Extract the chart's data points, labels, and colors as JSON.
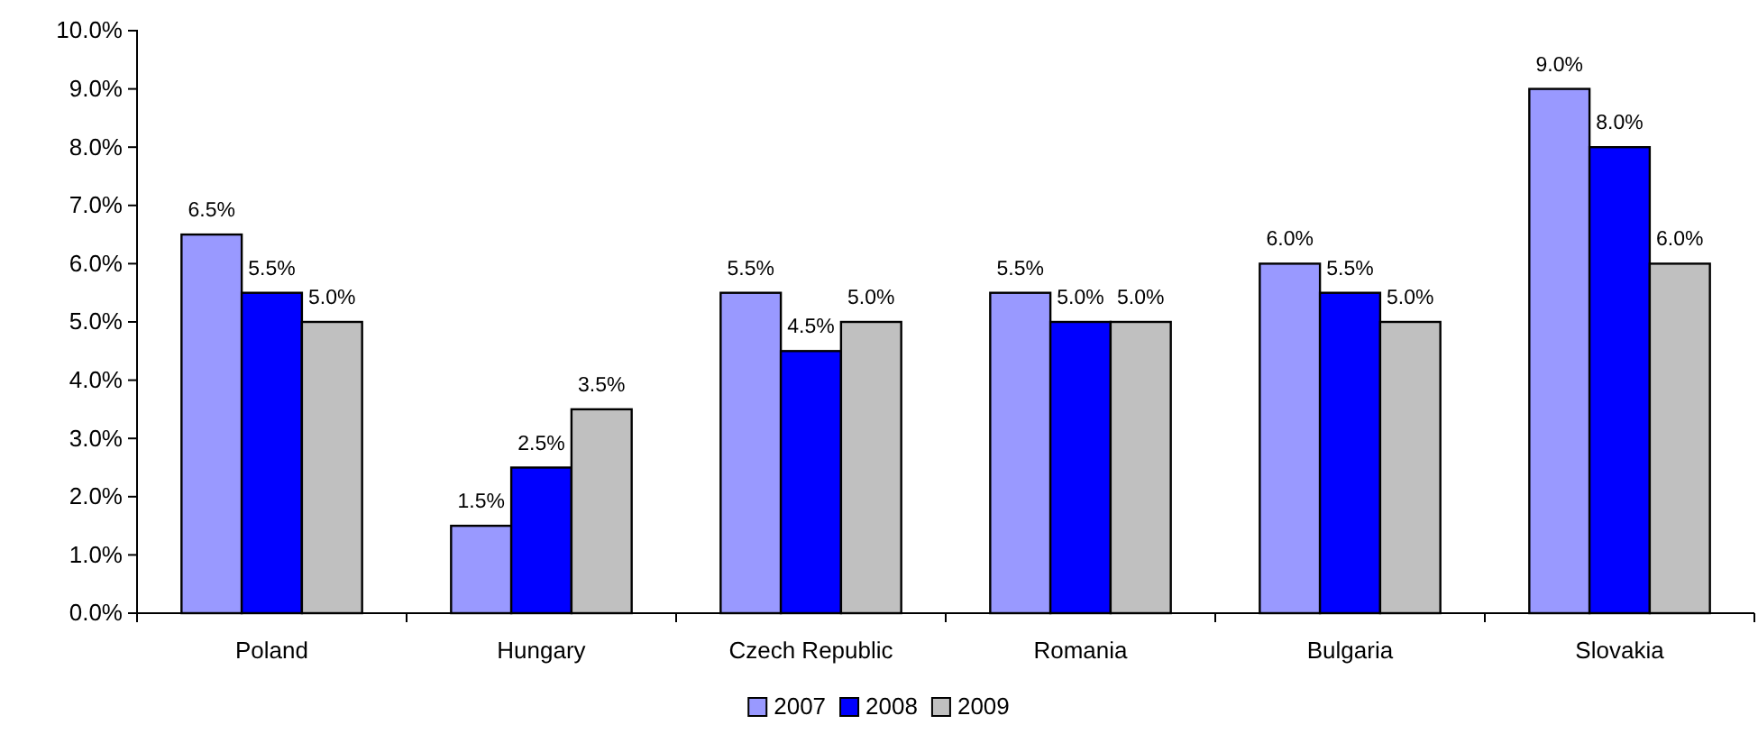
{
  "chart_data": {
    "type": "bar",
    "categories": [
      "Poland",
      "Hungary",
      "Czech Republic",
      "Romania",
      "Bulgaria",
      "Slovakia"
    ],
    "series": [
      {
        "name": "2007",
        "color": "#9999ff",
        "values": [
          6.5,
          1.5,
          5.5,
          5.5,
          6.0,
          9.0
        ],
        "value_labels": [
          "6.5%",
          "1.5%",
          "5.5%",
          "5.5%",
          "6.0%",
          "9.0%"
        ]
      },
      {
        "name": "2008",
        "color": "#0000ff",
        "values": [
          5.5,
          2.5,
          4.5,
          5.0,
          5.5,
          8.0
        ],
        "value_labels": [
          "5.5%",
          "2.5%",
          "4.5%",
          "5.0%",
          "5.5%",
          "8.0%"
        ]
      },
      {
        "name": "2009",
        "color": "#c0c0c0",
        "values": [
          5.0,
          3.5,
          5.0,
          5.0,
          5.0,
          6.0
        ],
        "value_labels": [
          "5.0%",
          "3.5%",
          "5.0%",
          "5.0%",
          "5.0%",
          "6.0%"
        ]
      }
    ],
    "ylim": [
      0,
      10
    ],
    "yticks": [
      {
        "value": 0,
        "label": "0.0%"
      },
      {
        "value": 1,
        "label": "1.0%"
      },
      {
        "value": 2,
        "label": "2.0%"
      },
      {
        "value": 3,
        "label": "3.0%"
      },
      {
        "value": 4,
        "label": "4.0%"
      },
      {
        "value": 5,
        "label": "5.0%"
      },
      {
        "value": 6,
        "label": "6.0%"
      },
      {
        "value": 7,
        "label": "7.0%"
      },
      {
        "value": 8,
        "label": "8.0%"
      },
      {
        "value": 9,
        "label": "9.0%"
      },
      {
        "value": 10,
        "label": "10.0%"
      }
    ],
    "legend": "bottom"
  }
}
